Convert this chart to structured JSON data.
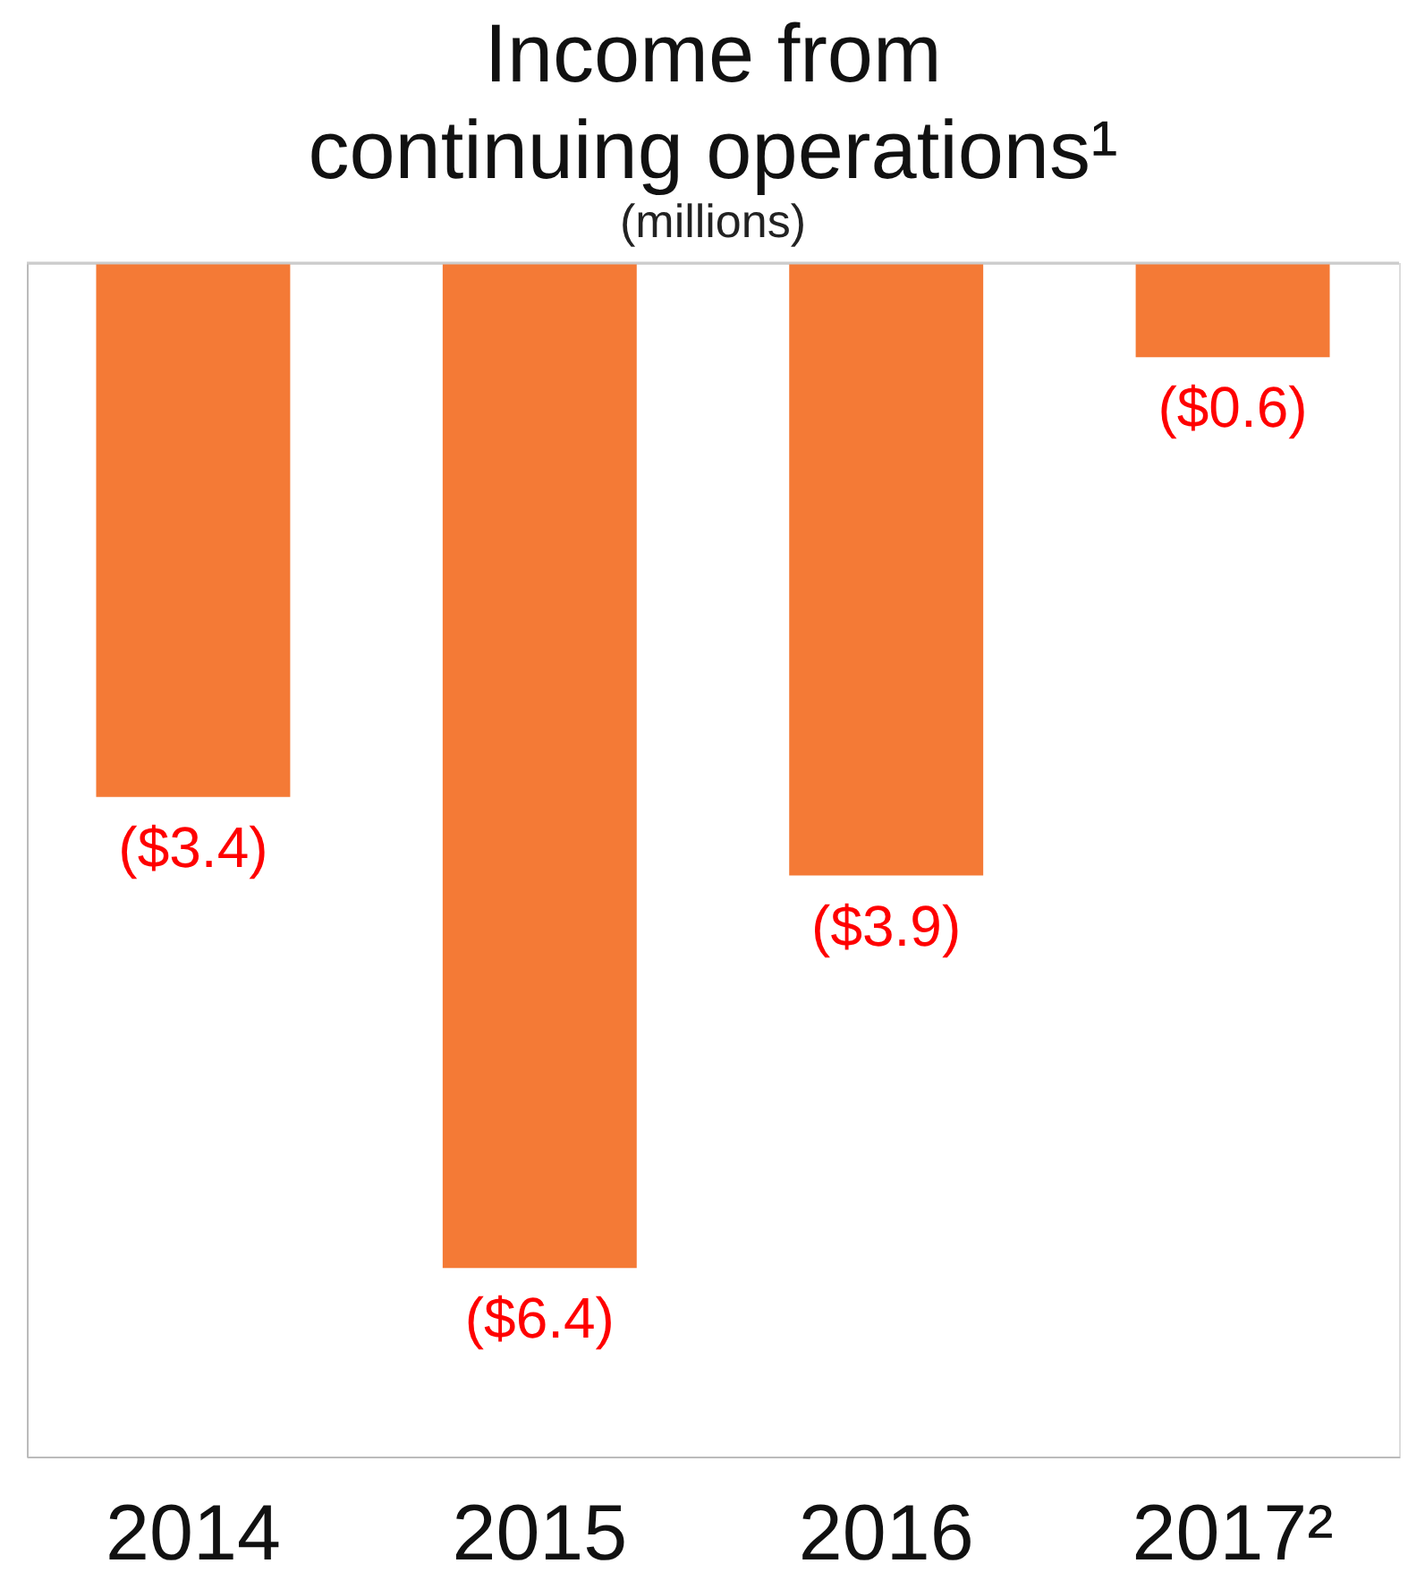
{
  "chart_data": {
    "type": "bar",
    "title": "Income from continuing operations¹",
    "subtitle": "(millions)",
    "categories": [
      "2014",
      "2015",
      "2016",
      "2017²"
    ],
    "values": [
      -3.4,
      -6.4,
      -3.9,
      -0.6
    ],
    "value_labels": [
      "($3.4)",
      "($6.4)",
      "($3.9)",
      "($0.6)"
    ],
    "color": "#f47a36",
    "ylim": [
      -7.6,
      0
    ],
    "tick_labels": "x",
    "grid": false
  }
}
